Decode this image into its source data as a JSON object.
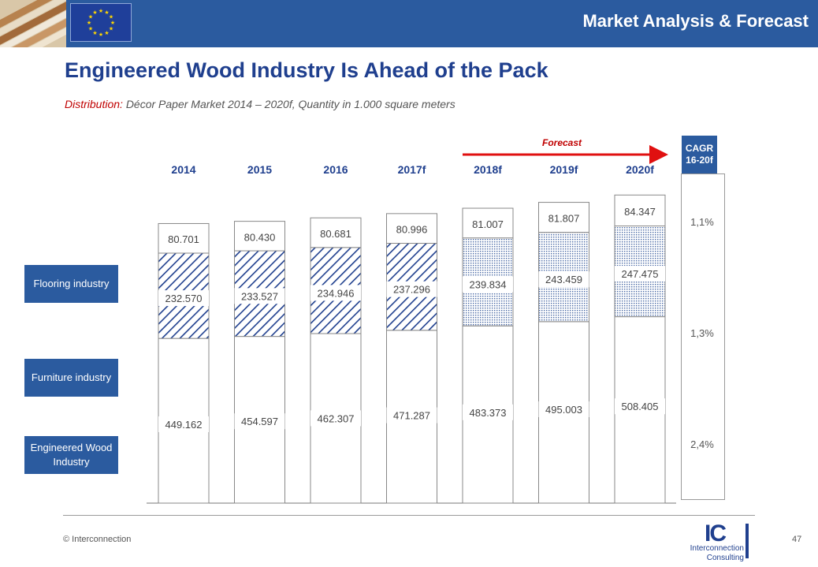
{
  "header": {
    "title": "Market Analysis & Forecast",
    "colors": {
      "band": "#2b5b9f",
      "eu_flag": "#1f3f9a",
      "eu_stars": "#ffd700"
    }
  },
  "slide": {
    "title": "Engineered Wood Industry Is Ahead of the Pack",
    "subtitle_label": "Distribution:",
    "subtitle_text": "Décor Paper Market 2014 – 2020f, Quantity in 1.000 square meters"
  },
  "segment_tags": {
    "flooring": "Flooring industry",
    "furniture": "Furniture industry",
    "engineered": "Engineered Wood Industry"
  },
  "forecast_label": "Forecast",
  "cagr": {
    "header": "CAGR 16-20f",
    "values": {
      "flooring": "1,1%",
      "furniture": "1,3%",
      "engineered": "2,4%"
    }
  },
  "chart_data": {
    "type": "bar",
    "stacked": true,
    "categories": [
      "2014",
      "2015",
      "2016",
      "2017f",
      "2018f",
      "2019f",
      "2020f"
    ],
    "forecast_from_index": 4,
    "series": [
      {
        "key": "engineered",
        "name": "Engineered Wood Industry",
        "fill": "white",
        "values": [
          449162,
          454597,
          462307,
          471287,
          483373,
          495003,
          508405
        ],
        "labels": [
          "449.162",
          "454.597",
          "462.307",
          "471.287",
          "483.373",
          "495.003",
          "508.405"
        ]
      },
      {
        "key": "furniture",
        "name": "Furniture industry",
        "fill": "pattern",
        "values": [
          232570,
          233527,
          234946,
          237296,
          239834,
          243459,
          247475
        ],
        "labels": [
          "232.570",
          "233.527",
          "234.946",
          "237.296",
          "239.834",
          "243.459",
          "247.475"
        ]
      },
      {
        "key": "flooring",
        "name": "Flooring industry",
        "fill": "white",
        "values": [
          80701,
          80430,
          80681,
          80996,
          81007,
          81807,
          84347
        ],
        "labels": [
          "80.701",
          "80.430",
          "80.681",
          "80.996",
          "81.007",
          "81.807",
          "84.347"
        ]
      }
    ],
    "colors": {
      "hatch": "#1f3f8e",
      "dots": "#4a6aa6",
      "bar_border": "#888888",
      "label_text": "#444444",
      "year_text": "#1f3f8e"
    }
  },
  "footer": {
    "copyright": "© Interconnection",
    "logo_initials": "IC",
    "logo_line1": "Interconnection",
    "logo_line2": "Consulting",
    "page_number": "47"
  }
}
